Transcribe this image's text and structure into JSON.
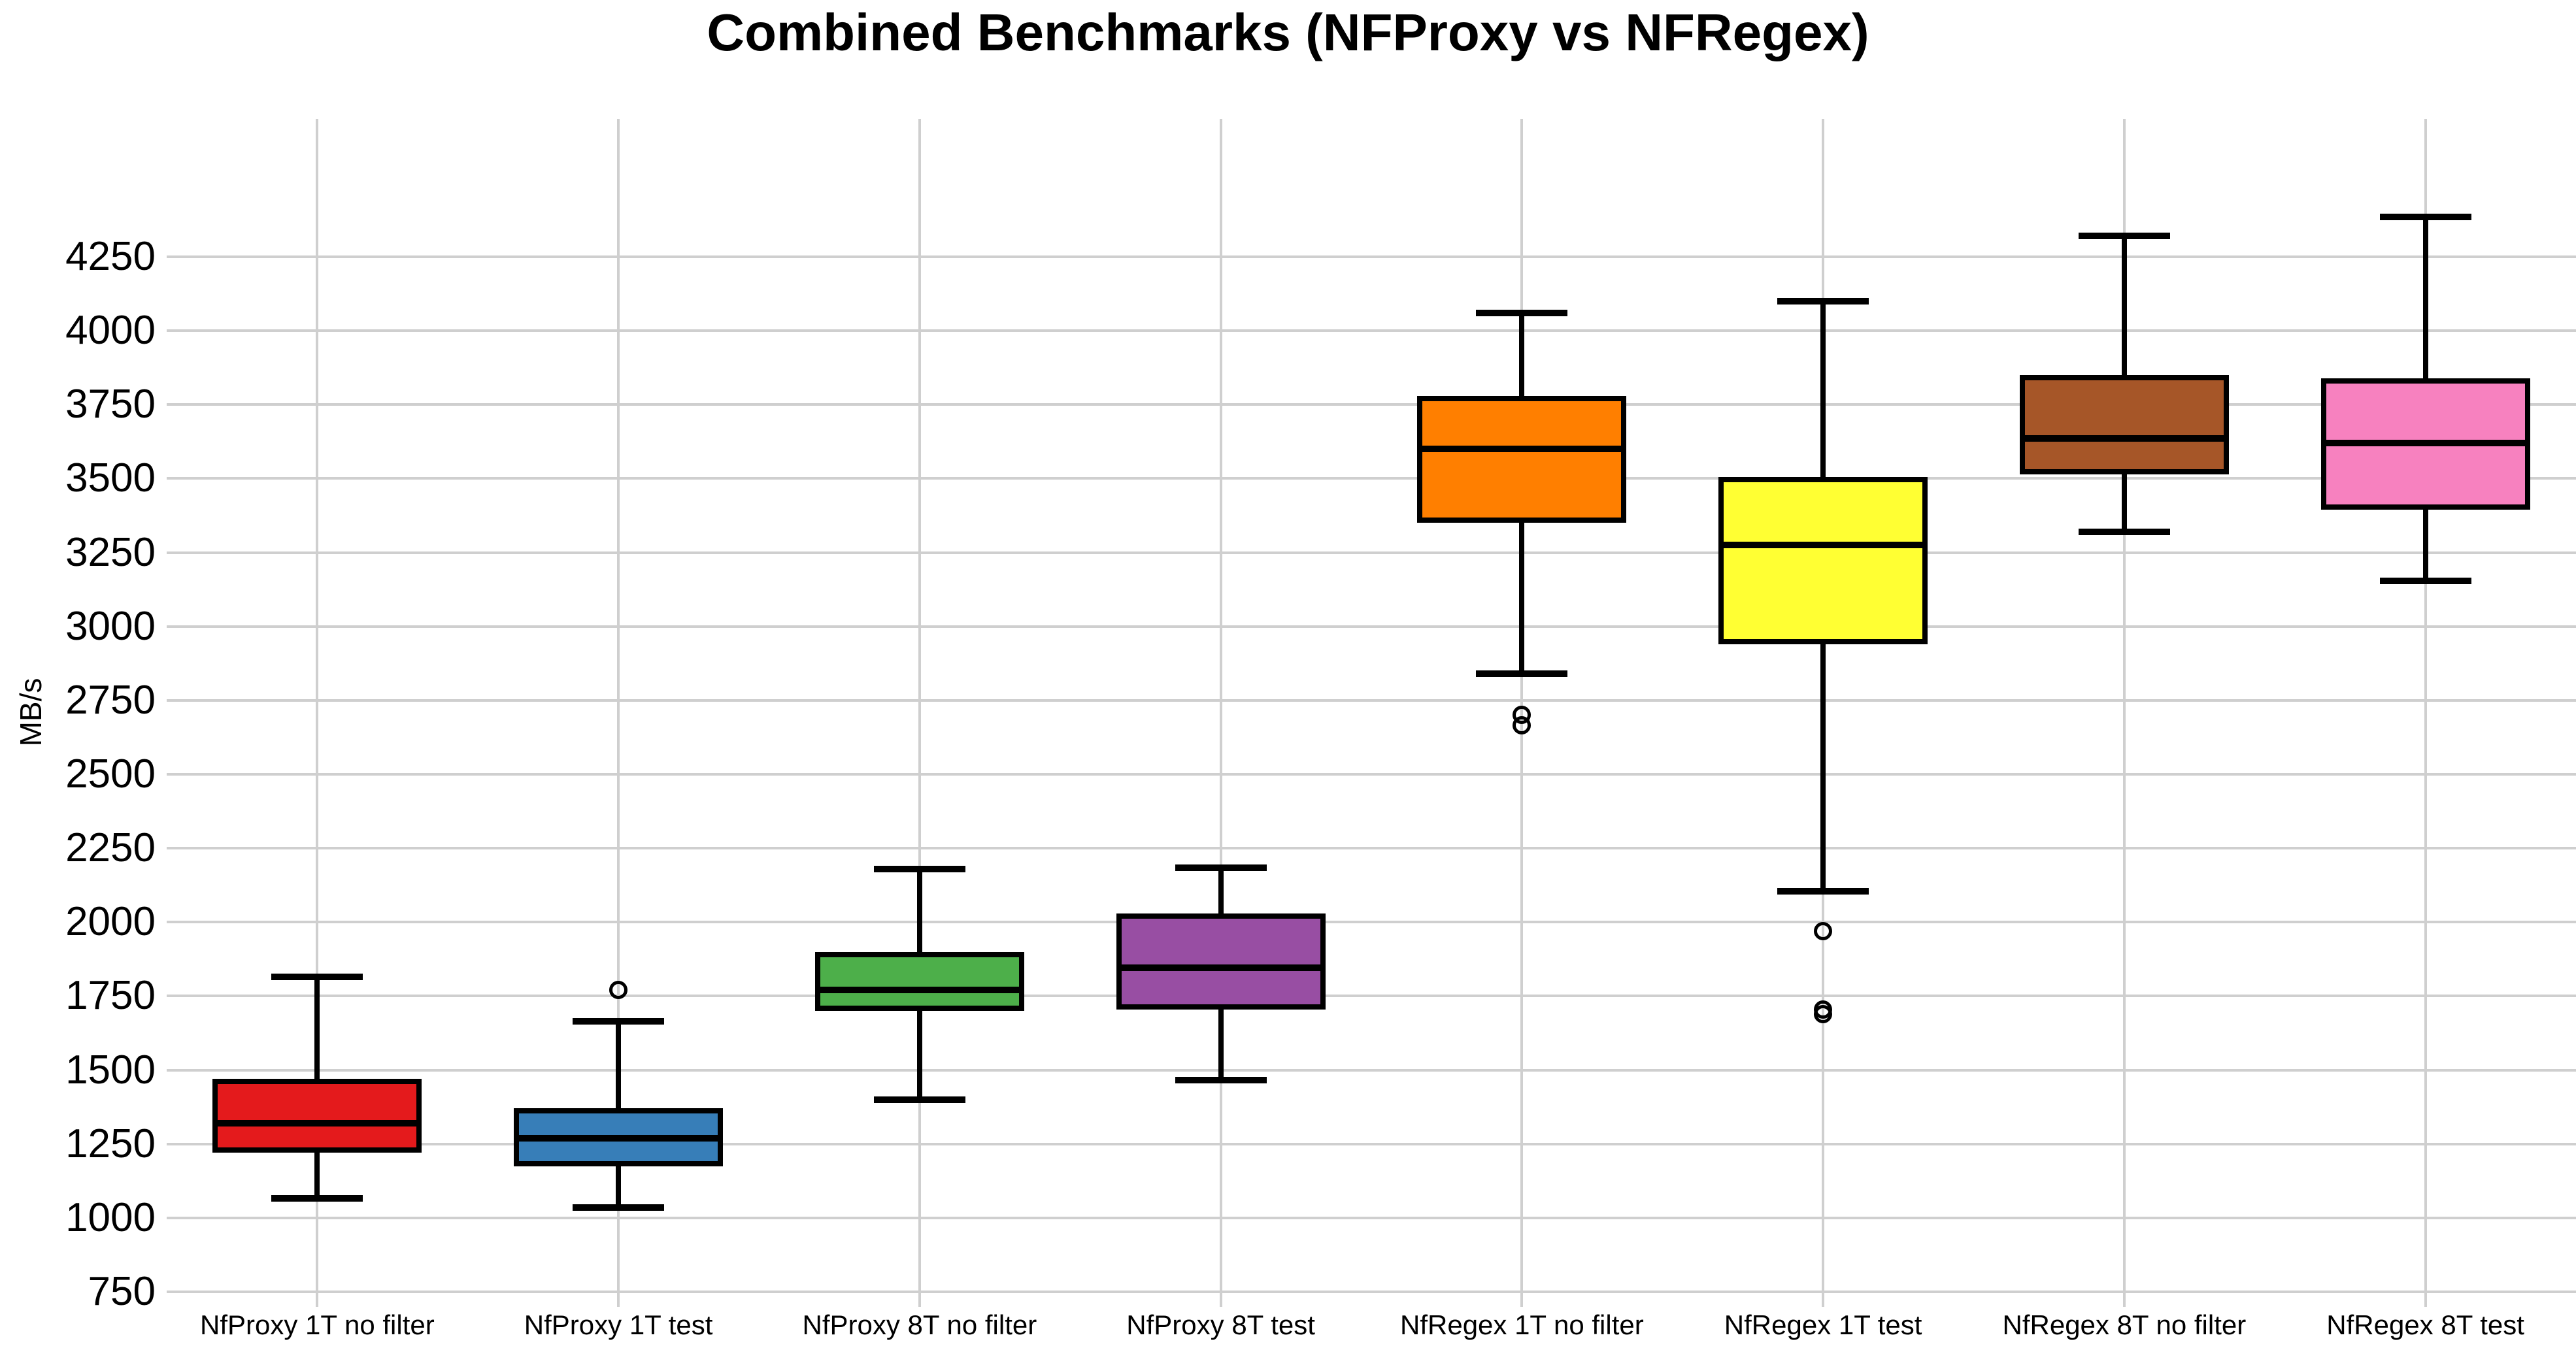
{
  "figure": {
    "title": "Combined Benchmarks (NFProxy vs NFRegex)"
  },
  "chart_data": {
    "type": "boxplot",
    "title": "Combined Benchmarks (NFProxy vs NFRegex)",
    "xlabel": "",
    "ylabel": "MB/s",
    "ylim": [
      700,
      4716
    ],
    "yticks": [
      750,
      1000,
      1250,
      1500,
      1750,
      2000,
      2250,
      2500,
      2750,
      3000,
      3250,
      3500,
      3750,
      4000,
      4250
    ],
    "grid": true,
    "legend_position": "none",
    "background_color": "#ffffff",
    "gridline_color": "#cfcfcf",
    "categories": [
      "NfProxy 1T no filter",
      "NfProxy 1T test",
      "NfProxy 8T no filter",
      "NfProxy 8T test",
      "NfRegex 1T no filter",
      "NfRegex 1T test",
      "NfRegex 8T no filter",
      "NfRegex 8T test"
    ],
    "boxes": [
      {
        "label": "NfProxy 1T no filter",
        "color": "#e41a1c",
        "whisker_low": 1065,
        "q1": 1220,
        "median": 1320,
        "q3": 1470,
        "whisker_high": 1815,
        "outliers": []
      },
      {
        "label": "NfProxy 1T test",
        "color": "#377eb8",
        "whisker_low": 1035,
        "q1": 1175,
        "median": 1270,
        "q3": 1370,
        "whisker_high": 1665,
        "outliers": [
          1770
        ]
      },
      {
        "label": "NfProxy 8T no filter",
        "color": "#4daf4a",
        "whisker_low": 1400,
        "q1": 1700,
        "median": 1770,
        "q3": 1900,
        "whisker_high": 2180,
        "outliers": []
      },
      {
        "label": "NfProxy 8T test",
        "color": "#984ea3",
        "whisker_low": 1465,
        "q1": 1705,
        "median": 1845,
        "q3": 2030,
        "whisker_high": 2185,
        "outliers": []
      },
      {
        "label": "NfRegex 1T no filter",
        "color": "#ff7f00",
        "whisker_low": 2840,
        "q1": 3350,
        "median": 3600,
        "q3": 3780,
        "whisker_high": 4060,
        "outliers": [
          2700,
          2665
        ]
      },
      {
        "label": "NfRegex 1T test",
        "color": "#ffff33",
        "whisker_low": 2105,
        "q1": 2940,
        "median": 3275,
        "q3": 3505,
        "whisker_high": 4100,
        "outliers": [
          1970,
          1705,
          1690
        ]
      },
      {
        "label": "NfRegex 8T no filter",
        "color": "#a65628",
        "whisker_low": 3320,
        "q1": 3515,
        "median": 3635,
        "q3": 3850,
        "whisker_high": 4320,
        "outliers": []
      },
      {
        "label": "NfRegex 8T test",
        "color": "#f781bf",
        "whisker_low": 3155,
        "q1": 3395,
        "median": 3620,
        "q3": 3840,
        "whisker_high": 4385,
        "outliers": []
      }
    ]
  }
}
